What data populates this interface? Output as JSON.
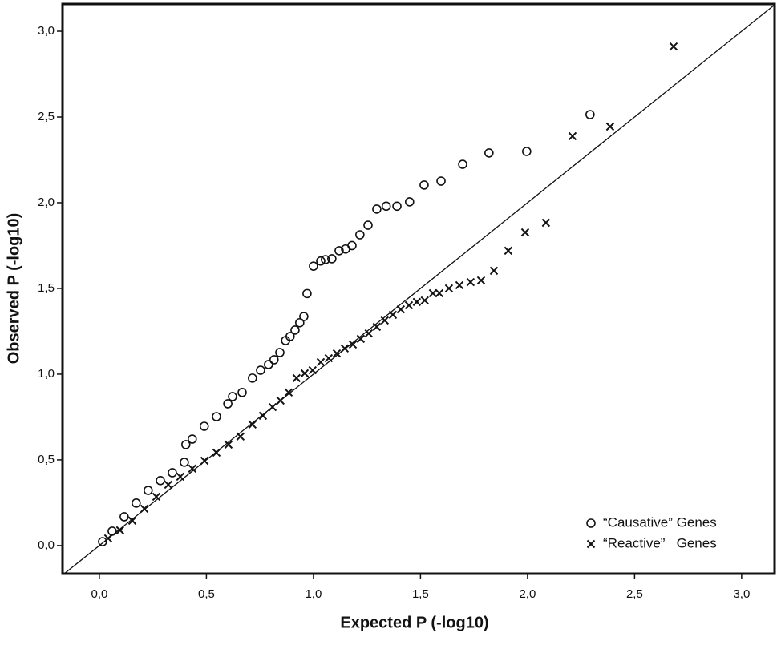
{
  "chart_data": {
    "type": "scatter",
    "x_label": "Expected P (-log10)",
    "y_label": "Observed P (-log10)",
    "xlim": [
      -0.172,
      3.154
    ],
    "ylim": [
      -0.164,
      3.159
    ],
    "xticks": [
      {
        "value": 0,
        "label": "0,0"
      },
      {
        "value": 0.5,
        "label": "0,5"
      },
      {
        "value": 1,
        "label": "1,0"
      },
      {
        "value": 1.5,
        "label": "1,5"
      },
      {
        "value": 2,
        "label": "2,0"
      },
      {
        "value": 2.5,
        "label": "2,5"
      },
      {
        "value": 3,
        "label": "3,0"
      }
    ],
    "yticks": [
      {
        "value": 0,
        "label": "0,0"
      },
      {
        "value": 0.5,
        "label": "0,5"
      },
      {
        "value": 1,
        "label": "1,0"
      },
      {
        "value": 1.5,
        "label": "1,5"
      },
      {
        "value": 2,
        "label": "2,0"
      },
      {
        "value": 2.5,
        "label": "2,5"
      },
      {
        "value": 3,
        "label": "3,0"
      }
    ],
    "grid": false,
    "legend": "lower right",
    "series": [
      {
        "name": "“Causative” Genes",
        "marker": "circle",
        "color": "#111111",
        "x": [
          2.292,
          1.996,
          1.82,
          1.697,
          1.596,
          1.517,
          1.449,
          1.39,
          1.34,
          1.296,
          1.255,
          1.217,
          1.18,
          1.15,
          1.12,
          1.086,
          1.056,
          1.034,
          1.0,
          0.97,
          0.955,
          0.936,
          0.914,
          0.891,
          0.87,
          0.843,
          0.816,
          0.79,
          0.753,
          0.715,
          0.667,
          0.622,
          0.6,
          0.547,
          0.49,
          0.434,
          0.404,
          0.397,
          0.341,
          0.285,
          0.228,
          0.172,
          0.116,
          0.06,
          0.015
        ],
        "values": [
          2.514,
          2.299,
          2.29,
          2.224,
          2.126,
          2.103,
          2.005,
          1.98,
          1.98,
          1.963,
          1.869,
          1.813,
          1.75,
          1.73,
          1.72,
          1.673,
          1.668,
          1.66,
          1.63,
          1.47,
          1.336,
          1.3,
          1.257,
          1.22,
          1.196,
          1.126,
          1.084,
          1.056,
          1.023,
          0.977,
          0.893,
          0.869,
          0.827,
          0.752,
          0.696,
          0.621,
          0.589,
          0.486,
          0.425,
          0.379,
          0.322,
          0.248,
          0.168,
          0.084,
          0.023
        ]
      },
      {
        "name": "“Reactive”   Genes",
        "marker": "x",
        "color": "#111111",
        "x": [
          2.682,
          2.386,
          2.21,
          2.086,
          1.989,
          1.91,
          1.843,
          1.783,
          1.734,
          1.682,
          1.633,
          1.588,
          1.558,
          1.52,
          1.483,
          1.446,
          1.408,
          1.371,
          1.333,
          1.296,
          1.258,
          1.221,
          1.184,
          1.146,
          1.109,
          1.071,
          1.034,
          0.996,
          0.959,
          0.921,
          0.884,
          0.846,
          0.809,
          0.764,
          0.715,
          0.659,
          0.603,
          0.547,
          0.491,
          0.434,
          0.378,
          0.322,
          0.266,
          0.21,
          0.154,
          0.097,
          0.041
        ],
        "values": [
          2.911,
          2.444,
          2.388,
          1.883,
          1.827,
          1.72,
          1.603,
          1.547,
          1.537,
          1.519,
          1.5,
          1.472,
          1.472,
          1.43,
          1.421,
          1.402,
          1.378,
          1.346,
          1.313,
          1.276,
          1.238,
          1.206,
          1.173,
          1.15,
          1.121,
          1.093,
          1.07,
          1.023,
          1.005,
          0.977,
          0.893,
          0.846,
          0.808,
          0.757,
          0.706,
          0.636,
          0.589,
          0.542,
          0.495,
          0.449,
          0.402,
          0.355,
          0.285,
          0.215,
          0.145,
          0.089,
          0.042
        ]
      }
    ]
  }
}
